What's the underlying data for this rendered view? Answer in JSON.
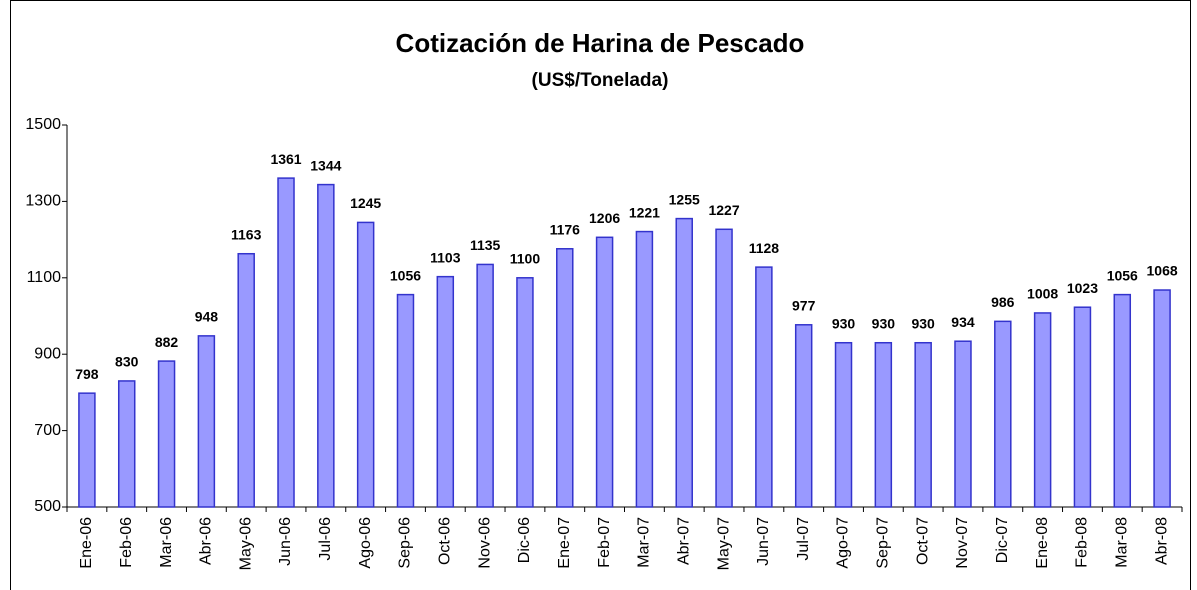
{
  "chart_data": {
    "type": "bar",
    "title": "Cotización de Harina de Pescado",
    "subtitle": "(US$/Tonelada)",
    "categories": [
      "Ene-06",
      "Feb-06",
      "Mar-06",
      "Abr-06",
      "May-06",
      "Jun-06",
      "Jul-06",
      "Ago-06",
      "Sep-06",
      "Oct-06",
      "Nov-06",
      "Dic-06",
      "Ene-07",
      "Feb-07",
      "Mar-07",
      "Abr-07",
      "May-07",
      "Jun-07",
      "Jul-07",
      "Ago-07",
      "Sep-07",
      "Oct-07",
      "Nov-07",
      "Dic-07",
      "Ene-08",
      "Feb-08",
      "Mar-08",
      "Abr-08"
    ],
    "values": [
      798,
      830,
      882,
      948,
      1163,
      1361,
      1344,
      1245,
      1056,
      1103,
      1135,
      1100,
      1176,
      1206,
      1221,
      1255,
      1227,
      1128,
      977,
      930,
      930,
      930,
      934,
      986,
      1008,
      1023,
      1056,
      1068
    ],
    "color": "#9999ff",
    "ylim": [
      500,
      1500
    ],
    "yticks": [
      500,
      700,
      900,
      1100,
      1300,
      1500
    ],
    "grid": false
  }
}
